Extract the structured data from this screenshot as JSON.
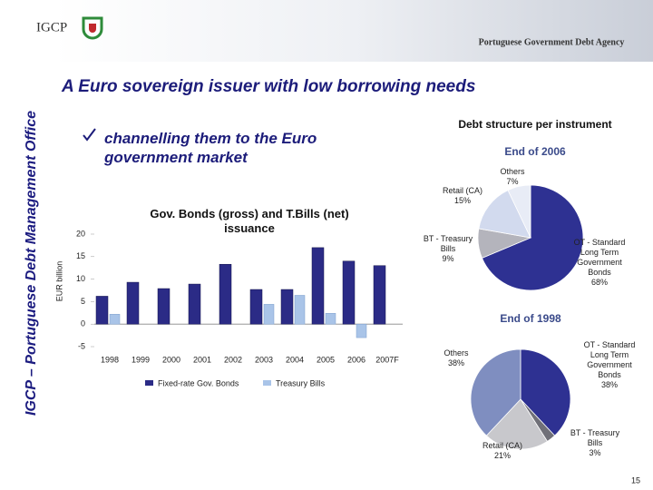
{
  "header": {
    "logo": "IGCP",
    "agency": "Portuguese Government Debt Agency",
    "sidebar": "IGCP – Portuguese Debt Management Office",
    "title": "A Euro sovereign issuer with low borrowing needs",
    "bullet": "channelling them to the Euro government market",
    "section": "Debt structure per instrument",
    "page": "15"
  },
  "chart_data": [
    {
      "type": "bar",
      "title": "Gov. Bonds (gross) and T.Bills (net) issuance",
      "y_label": "EUR billion",
      "categories": [
        "1998",
        "1999",
        "2000",
        "2001",
        "2002",
        "2003",
        "2004",
        "2005",
        "2006",
        "2007F"
      ],
      "series": [
        {
          "name": "Fixed-rate Gov. Bonds",
          "color": "#2b2b86",
          "values": [
            6.2,
            9.3,
            7.9,
            8.9,
            13.3,
            7.7,
            7.7,
            17,
            14,
            13
          ]
        },
        {
          "name": "Treasury Bills",
          "color": "#a9c4e8",
          "values": [
            2.2,
            null,
            null,
            null,
            null,
            4.4,
            6.4,
            2.4,
            -3,
            null
          ]
        }
      ],
      "ylim": [
        -5,
        20
      ],
      "yticks": [
        -5,
        0,
        5,
        10,
        15,
        20
      ],
      "legend": "bottom"
    },
    {
      "type": "pie",
      "title": "End of 2006",
      "categories": [
        "OT - Standard Long Term Government Bonds",
        "BT - Treasury Bills",
        "Retail (CA)",
        "Others"
      ],
      "values": [
        68,
        9,
        15,
        7
      ],
      "value_labels": [
        "68%",
        "9%",
        "15%",
        "7%"
      ],
      "colors": [
        "#2e3192",
        "#b4b4bc",
        "#d2daee",
        "#e8ecf6"
      ]
    },
    {
      "type": "pie",
      "title": "End of 1998",
      "categories": [
        "OT - Standard Long Term Government Bonds",
        "BT - Treasury Bills",
        "Retail (CA)",
        "Others"
      ],
      "values": [
        38,
        3,
        21,
        38
      ],
      "value_labels": [
        "38%",
        "3%",
        "21%",
        "38%"
      ],
      "colors": [
        "#2e3192",
        "#707078",
        "#c8c8cc",
        "#7f8ec0"
      ]
    }
  ]
}
